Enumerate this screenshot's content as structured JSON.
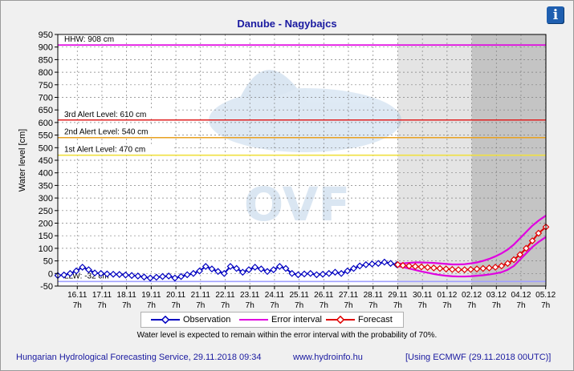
{
  "title": "Danube - Nagybajcs",
  "info_label": "i",
  "legend": {
    "observation": "Observation",
    "error_interval": "Error interval",
    "forecast": "Forecast"
  },
  "note": "Water level is expected to remain within the error interval with the probability of 70%.",
  "footer": {
    "left": "Hungarian Hydrological Forecasting Service, 29.11.2018 09:34",
    "mid": "www.hydroinfo.hu",
    "right": "[Using ECMWF (29.11.2018  00UTC)]"
  },
  "colors": {
    "observation": "#0000c0",
    "error_interval": "#e000e0",
    "forecast": "#e00000",
    "title": "#1a1aa0"
  },
  "chart_data": {
    "type": "line",
    "title": "Danube - Nagybajcs",
    "ylabel": "Water level [cm]",
    "xlabel": "",
    "ylim": [
      -50,
      950
    ],
    "yticks": [
      -50,
      0,
      50,
      100,
      150,
      200,
      250,
      300,
      350,
      400,
      450,
      500,
      550,
      600,
      650,
      700,
      750,
      800,
      850,
      900,
      950
    ],
    "x_range_days": [
      15.5,
      35.3
    ],
    "xticks": [
      {
        "day": 16.29,
        "date": "16.11",
        "hour": "7h"
      },
      {
        "day": 17.29,
        "date": "17.11",
        "hour": "7h"
      },
      {
        "day": 18.29,
        "date": "18.11",
        "hour": "7h"
      },
      {
        "day": 19.29,
        "date": "19.11",
        "hour": "7h"
      },
      {
        "day": 20.29,
        "date": "20.11",
        "hour": "7h"
      },
      {
        "day": 21.29,
        "date": "21.11",
        "hour": "7h"
      },
      {
        "day": 22.29,
        "date": "22.11",
        "hour": "7h"
      },
      {
        "day": 23.29,
        "date": "23.11",
        "hour": "7h"
      },
      {
        "day": 24.29,
        "date": "24.11",
        "hour": "7h"
      },
      {
        "day": 25.29,
        "date": "25.11",
        "hour": "7h"
      },
      {
        "day": 26.29,
        "date": "26.11",
        "hour": "7h"
      },
      {
        "day": 27.29,
        "date": "27.11",
        "hour": "7h"
      },
      {
        "day": 28.29,
        "date": "28.11",
        "hour": "7h"
      },
      {
        "day": 29.29,
        "date": "29.11",
        "hour": "7h"
      },
      {
        "day": 30.29,
        "date": "30.11",
        "hour": "7h"
      },
      {
        "day": 31.29,
        "date": "01.12",
        "hour": "7h"
      },
      {
        "day": 32.29,
        "date": "02.12",
        "hour": "7h"
      },
      {
        "day": 33.29,
        "date": "03.12",
        "hour": "7h"
      },
      {
        "day": 34.29,
        "date": "04.12",
        "hour": "7h"
      },
      {
        "day": 35.29,
        "date": "05.12",
        "hour": "7h"
      }
    ],
    "forecast_shading": [
      {
        "from": 29.29,
        "to": 32.29,
        "tone": "light"
      },
      {
        "from": 32.29,
        "to": 35.3,
        "tone": "dark"
      }
    ],
    "thresholds": [
      {
        "label": "HHW: 908 cm",
        "value": 908,
        "color": "#e000e0"
      },
      {
        "label": "3rd Alert Level: 610 cm",
        "value": 610,
        "color": "#e02020"
      },
      {
        "label": "2nd Alert Level: 540 cm",
        "value": 540,
        "color": "#e8a020"
      },
      {
        "label": "1st Alert Level: 470 cm",
        "value": 470,
        "color": "#f0e040"
      },
      {
        "label": "LLW: -32 cm",
        "value": -32,
        "color": "#a0a0ff"
      }
    ],
    "series": [
      {
        "name": "Observation",
        "x": [
          15.5,
          15.75,
          16.0,
          16.25,
          16.5,
          16.75,
          17.0,
          17.25,
          17.5,
          17.75,
          18.0,
          18.25,
          18.5,
          18.75,
          19.0,
          19.25,
          19.5,
          19.75,
          20.0,
          20.25,
          20.5,
          20.75,
          21.0,
          21.25,
          21.5,
          21.75,
          22.0,
          22.25,
          22.5,
          22.75,
          23.0,
          23.25,
          23.5,
          23.75,
          24.0,
          24.25,
          24.5,
          24.75,
          25.0,
          25.25,
          25.5,
          25.75,
          26.0,
          26.25,
          26.5,
          26.75,
          27.0,
          27.25,
          27.5,
          27.75,
          28.0,
          28.25,
          28.5,
          28.75,
          29.0,
          29.25
        ],
        "values": [
          -8,
          -6,
          0,
          10,
          25,
          15,
          2,
          0,
          -2,
          -3,
          -4,
          -6,
          -8,
          -10,
          -14,
          -18,
          -15,
          -12,
          -10,
          -18,
          -12,
          -5,
          0,
          10,
          28,
          18,
          8,
          0,
          28,
          20,
          5,
          15,
          25,
          18,
          8,
          15,
          28,
          20,
          0,
          -5,
          -2,
          0,
          -5,
          -3,
          0,
          5,
          0,
          10,
          20,
          30,
          35,
          38,
          40,
          45,
          40,
          35
        ]
      },
      {
        "name": "Forecast",
        "x": [
          29.29,
          29.5,
          29.75,
          30.0,
          30.25,
          30.5,
          30.75,
          31.0,
          31.25,
          31.5,
          31.75,
          32.0,
          32.25,
          32.5,
          32.75,
          33.0,
          33.25,
          33.5,
          33.75,
          34.0,
          34.25,
          34.5,
          34.75,
          35.0,
          35.3
        ],
        "values": [
          35,
          32,
          30,
          28,
          26,
          24,
          22,
          20,
          18,
          16,
          15,
          15,
          16,
          18,
          20,
          22,
          25,
          30,
          40,
          55,
          75,
          100,
          130,
          160,
          185
        ]
      },
      {
        "name": "Error interval upper",
        "x": [
          29.29,
          29.5,
          29.75,
          30.0,
          30.25,
          30.5,
          30.75,
          31.0,
          31.25,
          31.5,
          31.75,
          32.0,
          32.25,
          32.5,
          32.75,
          33.0,
          33.25,
          33.5,
          33.75,
          34.0,
          34.25,
          34.5,
          34.75,
          35.0,
          35.3
        ],
        "values": [
          38,
          40,
          42,
          44,
          44,
          43,
          42,
          40,
          38,
          36,
          36,
          37,
          40,
          44,
          50,
          58,
          68,
          80,
          95,
          115,
          140,
          165,
          190,
          210,
          230
        ]
      },
      {
        "name": "Error interval lower",
        "x": [
          29.29,
          29.5,
          29.75,
          30.0,
          30.25,
          30.5,
          30.75,
          31.0,
          31.25,
          31.5,
          31.75,
          32.0,
          32.25,
          32.5,
          32.75,
          33.0,
          33.25,
          33.5,
          33.75,
          34.0,
          34.25,
          34.5,
          34.75,
          35.0,
          35.3
        ],
        "values": [
          30,
          25,
          20,
          14,
          8,
          3,
          -2,
          -6,
          -9,
          -11,
          -12,
          -12,
          -11,
          -9,
          -7,
          -4,
          0,
          5,
          15,
          30,
          55,
          80,
          105,
          125,
          145
        ]
      }
    ]
  }
}
